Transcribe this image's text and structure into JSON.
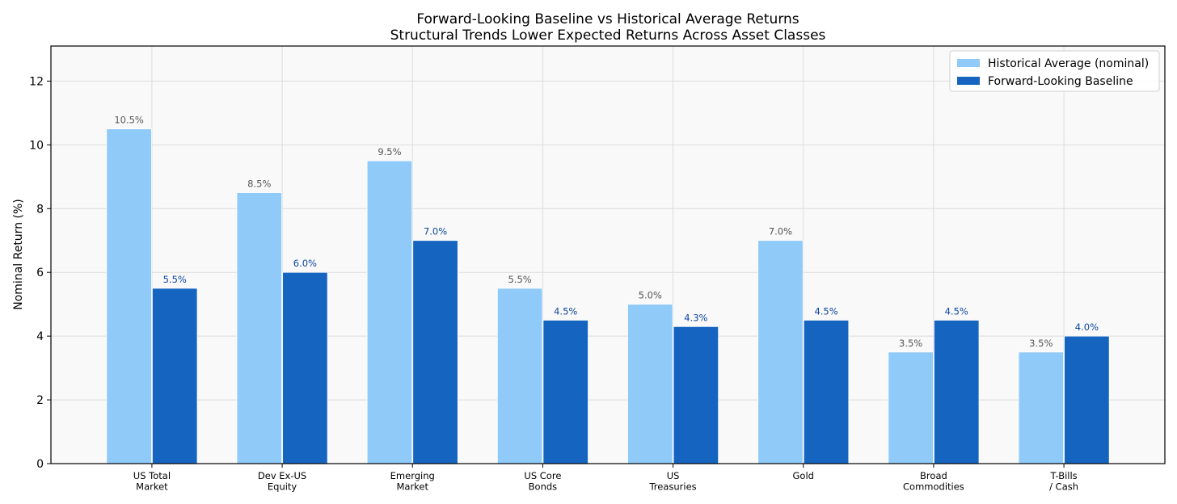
{
  "chart_data": {
    "type": "bar",
    "title": "Forward-Looking Baseline vs Historical Average Returns",
    "subtitle": "Structural Trends Lower Expected Returns Across Asset Classes",
    "xlabel": "",
    "ylabel": "Nominal Return (%)",
    "ylim": [
      0,
      13.1
    ],
    "yticks": [
      0,
      2,
      4,
      6,
      8,
      10,
      12
    ],
    "grid": true,
    "legend_position": "top-right",
    "categories": [
      [
        "US Total",
        "Market"
      ],
      [
        "Dev Ex-US",
        "Equity"
      ],
      [
        "Emerging",
        "Market"
      ],
      [
        "US Core",
        "Bonds"
      ],
      [
        "US",
        "Treasuries"
      ],
      [
        "Gold"
      ],
      [
        "Broad",
        "Commodities"
      ],
      [
        "T-Bills",
        "/ Cash"
      ]
    ],
    "series": [
      {
        "name": "Historical Average (nominal)",
        "color": "#90caf9",
        "label_color": "#555555",
        "values": [
          10.5,
          8.5,
          9.5,
          5.5,
          5.0,
          7.0,
          3.5,
          3.5
        ],
        "labels": [
          "10.5%",
          "8.5%",
          "9.5%",
          "5.5%",
          "5.0%",
          "7.0%",
          "3.5%",
          "3.5%"
        ]
      },
      {
        "name": "Forward-Looking Baseline",
        "color": "#1565c0",
        "label_color": "#0d47a1",
        "values": [
          5.5,
          6.0,
          7.0,
          4.5,
          4.3,
          4.5,
          4.5,
          4.0
        ],
        "labels": [
          "5.5%",
          "6.0%",
          "7.0%",
          "4.5%",
          "4.3%",
          "4.5%",
          "4.5%",
          "4.0%"
        ]
      }
    ]
  }
}
